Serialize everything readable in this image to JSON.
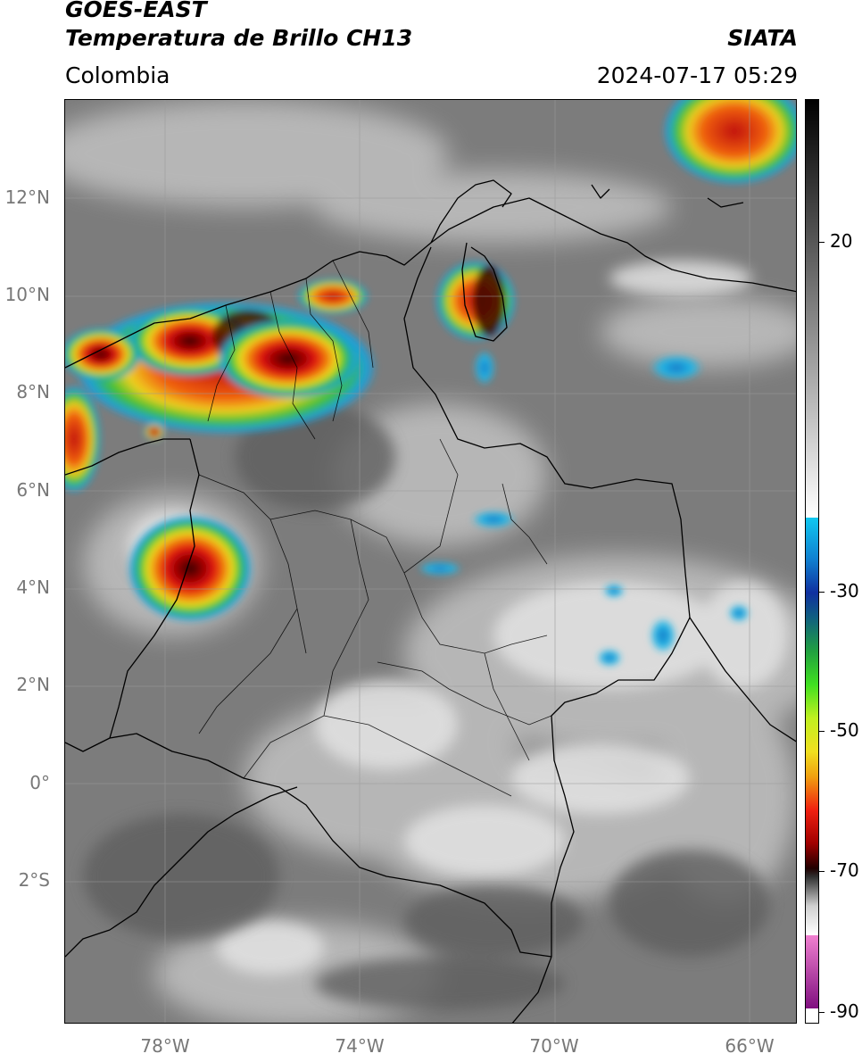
{
  "header": {
    "line1": "GOES-EAST",
    "line2": "Temperatura de Brillo CH13",
    "brand": "SIATA",
    "region": "Colombia",
    "timestamp": "2024-07-17 05:29"
  },
  "map": {
    "lat_labels": [
      "12°N",
      "10°N",
      "8°N",
      "6°N",
      "4°N",
      "2°N",
      "0°",
      "2°S"
    ],
    "lon_labels": [
      "78°W",
      "74°W",
      "70°W",
      "66°W"
    ],
    "colorbar_labels": [
      "20",
      "-30",
      "-50",
      "-70",
      "-90"
    ],
    "colors": {
      "background_gray": "#7a7a7a",
      "cloud_light": "#d8d8d8",
      "cold_cyan": "#20b8e8",
      "cold_green": "#30c030",
      "cold_yellow": "#f0e020",
      "cold_red": "#e01010",
      "coldest_dark": "#300000",
      "magenta": "#c040c0"
    }
  }
}
